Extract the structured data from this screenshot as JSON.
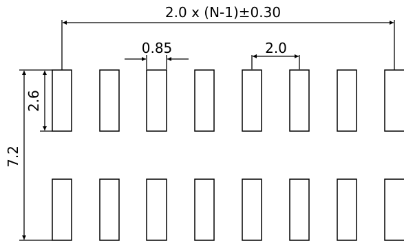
{
  "dimensions": {
    "overall": "2.0 x (N-1)±0.30",
    "pad_width": "0.85",
    "pitch": "2.0",
    "pad_length": "2.6",
    "row_span": "7.2"
  },
  "pads": {
    "rows": 2,
    "columns_visible": 8
  },
  "colors": {
    "stroke": "#000000",
    "background": "#ffffff"
  }
}
